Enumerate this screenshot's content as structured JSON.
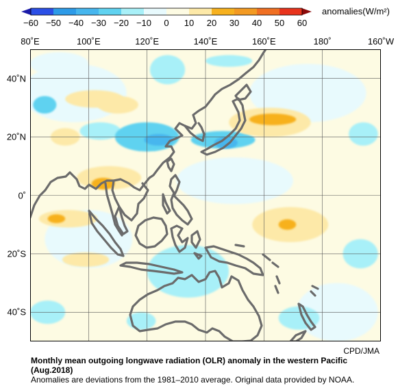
{
  "colorbar": {
    "units_label": "anomalies(W/m²)",
    "bins": [
      {
        "from": -60,
        "to": -50,
        "color": "#2b4fe6"
      },
      {
        "from": -50,
        "to": -40,
        "color": "#2d9be8"
      },
      {
        "from": -40,
        "to": -30,
        "color": "#46b6ee"
      },
      {
        "from": -30,
        "to": -20,
        "color": "#5fd2f0"
      },
      {
        "from": -20,
        "to": -10,
        "color": "#a8f0f8"
      },
      {
        "from": -10,
        "to": 0,
        "color": "#e8fafd"
      },
      {
        "from": 0,
        "to": 10,
        "color": "#fdfbe3"
      },
      {
        "from": 10,
        "to": 20,
        "color": "#fde9a8"
      },
      {
        "from": 20,
        "to": 30,
        "color": "#f7b11e"
      },
      {
        "from": 30,
        "to": 40,
        "color": "#f39a22"
      },
      {
        "from": 40,
        "to": 50,
        "color": "#f06f22"
      },
      {
        "from": 50,
        "to": 60,
        "color": "#e8331c"
      }
    ],
    "tick_labels": [
      "−60",
      "−50",
      "−40",
      "−30",
      "−20",
      "−10",
      "0",
      "10",
      "20",
      "30",
      "40",
      "50",
      "60"
    ]
  },
  "map": {
    "lon_range": [
      80,
      200
    ],
    "lat_range": [
      -50,
      50
    ],
    "lon_labels": [
      "80˚E",
      "100˚E",
      "120˚E",
      "140˚E",
      "160˚E",
      "180˚",
      "160˚W"
    ],
    "lat_labels": [
      "40˚N",
      "20˚N",
      "0˚",
      "20˚S",
      "40˚S"
    ],
    "coast_color": "#6b6b6b",
    "anomaly_regions": [
      {
        "lon": 85,
        "lat": 31,
        "rx": 4,
        "ry": 3,
        "bin": "-30..-20"
      },
      {
        "lon": 102,
        "lat": 33,
        "rx": 10,
        "ry": 3,
        "bin": "10..20"
      },
      {
        "lon": 92,
        "lat": 20,
        "rx": 5,
        "ry": 3,
        "bin": "10..20"
      },
      {
        "lon": 104,
        "lat": 22,
        "rx": 7,
        "ry": 3,
        "bin": "-20..-10"
      },
      {
        "lon": 120,
        "lat": 20,
        "rx": 11,
        "ry": 5,
        "bin": "-30..-20"
      },
      {
        "lon": 124,
        "lat": 19,
        "rx": 5,
        "ry": 2,
        "bin": "-40..-30"
      },
      {
        "lon": 110,
        "lat": 31,
        "rx": 7,
        "ry": 3,
        "bin": "10..20"
      },
      {
        "lon": 146,
        "lat": 19,
        "rx": 11,
        "ry": 3,
        "bin": "-30..-20"
      },
      {
        "lon": 147,
        "lat": 18,
        "rx": 4,
        "ry": 2,
        "bin": "-40..-30"
      },
      {
        "lon": 162,
        "lat": 25,
        "rx": 14,
        "ry": 5,
        "bin": "10..20"
      },
      {
        "lon": 163,
        "lat": 26,
        "rx": 8,
        "ry": 2,
        "bin": "20..30"
      },
      {
        "lon": 127,
        "lat": 43,
        "rx": 6,
        "ry": 5,
        "bin": "-20..-10"
      },
      {
        "lon": 148,
        "lat": 46,
        "rx": 8,
        "ry": 2,
        "bin": "-20..-10"
      },
      {
        "lon": 107,
        "lat": 6,
        "rx": 11,
        "ry": 4,
        "bin": "10..20"
      },
      {
        "lon": 105,
        "lat": 4,
        "rx": 4,
        "ry": 2,
        "bin": "20..30"
      },
      {
        "lon": 93,
        "lat": -8,
        "rx": 10,
        "ry": 3,
        "bin": "10..20"
      },
      {
        "lon": 89,
        "lat": -8,
        "rx": 3,
        "ry": 1.5,
        "bin": "20..30"
      },
      {
        "lon": 169,
        "lat": -10,
        "rx": 13,
        "ry": 6,
        "bin": "10..20"
      },
      {
        "lon": 168,
        "lat": -10,
        "rx": 3,
        "ry": 1.8,
        "bin": "20..30"
      },
      {
        "lon": 134,
        "lat": -26,
        "rx": 14,
        "ry": 9,
        "bin": "-20..-10"
      },
      {
        "lon": 99,
        "lat": -22,
        "rx": 8,
        "ry": 2.5,
        "bin": "10..20"
      },
      {
        "lon": 86,
        "lat": -40,
        "rx": 6,
        "ry": 4,
        "bin": "-20..-10"
      },
      {
        "lon": 118,
        "lat": -43,
        "rx": 5,
        "ry": 3,
        "bin": "-20..-10"
      },
      {
        "lon": 172,
        "lat": -42,
        "rx": 7,
        "ry": 4,
        "bin": "-20..-10"
      },
      {
        "lon": 193,
        "lat": -20,
        "rx": 6,
        "ry": 5,
        "bin": "-20..-10"
      },
      {
        "lon": 194,
        "lat": 21,
        "rx": 5,
        "ry": 4,
        "bin": "-20..-10"
      }
    ]
  },
  "credit": "CPD/JMA",
  "caption": {
    "title_line1": "Monthly mean outgoing longwave radiation (OLR) anomaly in the western Pacific",
    "title_line2": "(Aug.2018)",
    "note": "Anomalies are deviations from the 1981–2010 average. Original data provided by NOAA."
  }
}
